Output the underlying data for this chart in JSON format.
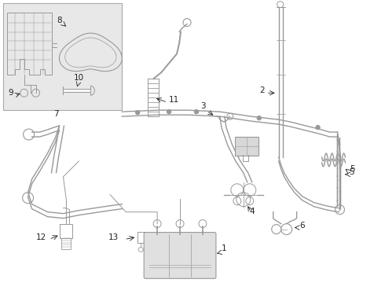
{
  "bg": "#ffffff",
  "lc": "#999999",
  "tc": "#222222",
  "inset_bg": "#e8e8e8",
  "fig_w": 4.9,
  "fig_h": 3.6,
  "dpi": 100
}
